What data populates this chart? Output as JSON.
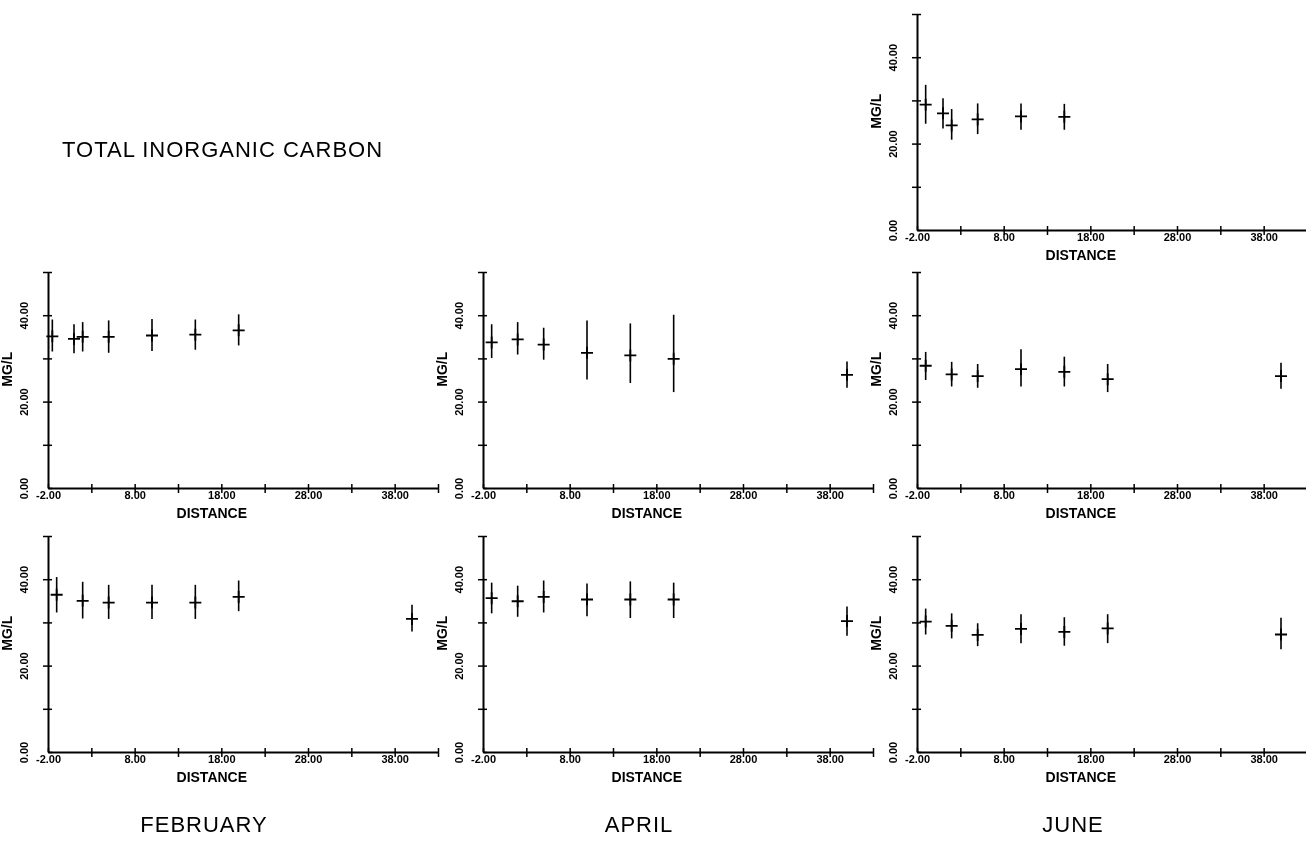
{
  "chart_data": [
    {
      "type": "scatter",
      "xlabel": "DISTANCE",
      "ylabel": "MG/L",
      "marker": "cross",
      "color": "#000000",
      "xlim": [
        -2,
        43
      ],
      "ylim": [
        0,
        50
      ],
      "xticks": [
        {
          "value": -2,
          "label": "-2.00"
        },
        {
          "value": 3,
          "label": null
        },
        {
          "value": 8,
          "label": "8.00"
        },
        {
          "value": 13,
          "label": null
        },
        {
          "value": 18,
          "label": "18.00"
        },
        {
          "value": 23,
          "label": null
        },
        {
          "value": 28,
          "label": "28.00"
        },
        {
          "value": 33,
          "label": null
        },
        {
          "value": 38,
          "label": "38.00"
        },
        {
          "value": 43,
          "label": null
        }
      ],
      "yticks": [
        {
          "value": 0,
          "label": "0.00"
        },
        {
          "value": 10,
          "label": null
        },
        {
          "value": 20,
          "label": "20.00"
        },
        {
          "value": 30,
          "label": null
        },
        {
          "value": 40,
          "label": "40.00"
        },
        {
          "value": 50,
          "label": null
        }
      ],
      "x": [
        -1,
        1,
        2,
        5,
        10,
        15
      ],
      "values": [
        29.0,
        27.0,
        24.2,
        25.6,
        26.3,
        26.2
      ],
      "errors": [
        [
          24.6,
          33.6
        ],
        [
          23.5,
          30.5
        ],
        [
          20.9,
          28.0
        ],
        [
          22.2,
          29.3
        ],
        [
          23.2,
          29.3
        ],
        [
          23.2,
          29.2
        ]
      ]
    },
    {
      "type": "scatter",
      "title": "TOTAL INORGANIC CARBON",
      "xlabel": "DISTANCE",
      "ylabel": "MG/L",
      "marker": "cross",
      "color": "#000000",
      "xlim": [
        -2,
        43
      ],
      "ylim": [
        0,
        50
      ],
      "xticks": [
        {
          "value": -2,
          "label": "-2.00"
        },
        {
          "value": 3,
          "label": null
        },
        {
          "value": 8,
          "label": "8.00"
        },
        {
          "value": 13,
          "label": null
        },
        {
          "value": 18,
          "label": "18.00"
        },
        {
          "value": 23,
          "label": null
        },
        {
          "value": 28,
          "label": "28.00"
        },
        {
          "value": 33,
          "label": null
        },
        {
          "value": 38,
          "label": "38.00"
        },
        {
          "value": 43,
          "label": null
        }
      ],
      "yticks": [
        {
          "value": 0,
          "label": "0.00"
        },
        {
          "value": 10,
          "label": null
        },
        {
          "value": 20,
          "label": "20.00"
        },
        {
          "value": 30,
          "label": null
        },
        {
          "value": 40,
          "label": "40.00"
        },
        {
          "value": 50,
          "label": null
        }
      ],
      "x": [
        -1.5,
        1,
        2,
        5,
        10,
        15,
        20
      ],
      "values": [
        35.1,
        34.5,
        35.0,
        35.0,
        35.3,
        35.5,
        36.5
      ],
      "errors": [
        [
          31.6,
          39.0
        ],
        [
          31.2,
          37.9
        ],
        [
          31.6,
          38.4
        ],
        [
          31.3,
          38.8
        ],
        [
          31.7,
          39.1
        ],
        [
          32.0,
          39.0
        ],
        [
          33.0,
          40.2
        ]
      ]
    },
    {
      "type": "scatter",
      "xlabel": "DISTANCE",
      "ylabel": "MG/L",
      "marker": "cross",
      "color": "#000000",
      "xlim": [
        -2,
        43
      ],
      "ylim": [
        0,
        50
      ],
      "xticks": [
        {
          "value": -2,
          "label": "-2.00"
        },
        {
          "value": 3,
          "label": null
        },
        {
          "value": 8,
          "label": "8.00"
        },
        {
          "value": 13,
          "label": null
        },
        {
          "value": 18,
          "label": "18.00"
        },
        {
          "value": 23,
          "label": null
        },
        {
          "value": 28,
          "label": "28.00"
        },
        {
          "value": 33,
          "label": null
        },
        {
          "value": 38,
          "label": "38.00"
        },
        {
          "value": 43,
          "label": null
        }
      ],
      "yticks": [
        {
          "value": 0,
          "label": "0.00"
        },
        {
          "value": 10,
          "label": null
        },
        {
          "value": 20,
          "label": "20.00"
        },
        {
          "value": 30,
          "label": null
        },
        {
          "value": 40,
          "label": "40.00"
        },
        {
          "value": 50,
          "label": null
        }
      ],
      "x": [
        -1,
        2,
        5,
        10,
        15,
        20,
        40
      ],
      "values": [
        33.7,
        34.4,
        33.2,
        31.3,
        30.7,
        29.9,
        26.2
      ],
      "errors": [
        [
          30.1,
          37.9
        ],
        [
          30.9,
          38.4
        ],
        [
          29.7,
          37.1
        ],
        [
          25.1,
          38.8
        ],
        [
          24.3,
          38.1
        ],
        [
          22.2,
          40.1
        ],
        [
          23.2,
          29.3
        ]
      ]
    },
    {
      "type": "scatter",
      "xlabel": "DISTANCE",
      "ylabel": "MG/L",
      "marker": "cross",
      "color": "#000000",
      "xlim": [
        -2,
        43
      ],
      "ylim": [
        0,
        50
      ],
      "xticks": [
        {
          "value": -2,
          "label": "-2.00"
        },
        {
          "value": 3,
          "label": null
        },
        {
          "value": 8,
          "label": "8.00"
        },
        {
          "value": 13,
          "label": null
        },
        {
          "value": 18,
          "label": "18.00"
        },
        {
          "value": 23,
          "label": null
        },
        {
          "value": 28,
          "label": "28.00"
        },
        {
          "value": 33,
          "label": null
        },
        {
          "value": 38,
          "label": "38.00"
        },
        {
          "value": 43,
          "label": null
        }
      ],
      "yticks": [
        {
          "value": 0,
          "label": "0.00"
        },
        {
          "value": 10,
          "label": null
        },
        {
          "value": 20,
          "label": "20.00"
        },
        {
          "value": 30,
          "label": null
        },
        {
          "value": 40,
          "label": "40.00"
        },
        {
          "value": 50,
          "label": null
        }
      ],
      "x": [
        -1,
        2,
        5,
        10,
        15,
        20,
        40
      ],
      "values": [
        28.3,
        26.3,
        25.9,
        27.5,
        26.9,
        25.2,
        25.9
      ],
      "errors": [
        [
          25.0,
          31.5
        ],
        [
          23.5,
          29.2
        ],
        [
          23.2,
          28.7
        ],
        [
          23.5,
          32.1
        ],
        [
          23.5,
          30.4
        ],
        [
          22.2,
          28.7
        ],
        [
          23.0,
          29.0
        ]
      ]
    },
    {
      "type": "scatter",
      "xlabel": "DISTANCE",
      "ylabel": "MG/L",
      "annotations": [
        "FEBRUARY"
      ],
      "marker": "cross",
      "color": "#000000",
      "xlim": [
        -2,
        43
      ],
      "ylim": [
        0,
        50
      ],
      "xticks": [
        {
          "value": -2,
          "label": "-2.00"
        },
        {
          "value": 3,
          "label": null
        },
        {
          "value": 8,
          "label": "8.00"
        },
        {
          "value": 13,
          "label": null
        },
        {
          "value": 18,
          "label": "18.00"
        },
        {
          "value": 23,
          "label": null
        },
        {
          "value": 28,
          "label": "28.00"
        },
        {
          "value": 33,
          "label": null
        },
        {
          "value": 38,
          "label": "38.00"
        },
        {
          "value": 43,
          "label": null
        }
      ],
      "yticks": [
        {
          "value": 0,
          "label": "0.00"
        },
        {
          "value": 10,
          "label": null
        },
        {
          "value": 20,
          "label": "20.00"
        },
        {
          "value": 30,
          "label": null
        },
        {
          "value": 40,
          "label": "40.00"
        },
        {
          "value": 50,
          "label": null
        }
      ],
      "x": [
        -1,
        2,
        5,
        10,
        15,
        20,
        40
      ],
      "values": [
        36.4,
        35.0,
        34.6,
        34.6,
        34.6,
        35.9,
        30.8
      ],
      "errors": [
        [
          32.3,
          40.5
        ],
        [
          30.9,
          39.4
        ],
        [
          30.8,
          38.7
        ],
        [
          30.8,
          38.7
        ],
        [
          30.8,
          38.7
        ],
        [
          32.6,
          39.7
        ],
        [
          27.9,
          34.1
        ]
      ]
    },
    {
      "type": "scatter",
      "xlabel": "DISTANCE",
      "ylabel": "MG/L",
      "annotations": [
        "APRIL"
      ],
      "marker": "cross",
      "color": "#000000",
      "xlim": [
        -2,
        43
      ],
      "ylim": [
        0,
        50
      ],
      "xticks": [
        {
          "value": -2,
          "label": "-2.00"
        },
        {
          "value": 3,
          "label": null
        },
        {
          "value": 8,
          "label": "8.00"
        },
        {
          "value": 13,
          "label": null
        },
        {
          "value": 18,
          "label": "18.00"
        },
        {
          "value": 23,
          "label": null
        },
        {
          "value": 28,
          "label": "28.00"
        },
        {
          "value": 33,
          "label": null
        },
        {
          "value": 38,
          "label": "38.00"
        },
        {
          "value": 43,
          "label": null
        }
      ],
      "yticks": [
        {
          "value": 0,
          "label": "0.00"
        },
        {
          "value": 10,
          "label": null
        },
        {
          "value": 20,
          "label": "20.00"
        },
        {
          "value": 30,
          "label": null
        },
        {
          "value": 40,
          "label": "40.00"
        },
        {
          "value": 50,
          "label": null
        }
      ],
      "x": [
        -1,
        2,
        5,
        10,
        15,
        20,
        40
      ],
      "values": [
        35.6,
        34.9,
        35.9,
        35.3,
        35.3,
        35.3,
        30.3
      ],
      "errors": [
        [
          32.1,
          39.2
        ],
        [
          31.3,
          38.5
        ],
        [
          32.3,
          39.7
        ],
        [
          31.4,
          39.0
        ],
        [
          31.0,
          39.5
        ],
        [
          31.0,
          39.2
        ],
        [
          26.9,
          33.7
        ]
      ]
    },
    {
      "type": "scatter",
      "xlabel": "DISTANCE",
      "ylabel": "MG/L",
      "annotations": [
        "JUNE"
      ],
      "marker": "cross",
      "color": "#000000",
      "xlim": [
        -2,
        43
      ],
      "ylim": [
        0,
        50
      ],
      "xticks": [
        {
          "value": -2,
          "label": "-2.00"
        },
        {
          "value": 3,
          "label": null
        },
        {
          "value": 8,
          "label": "8.00"
        },
        {
          "value": 13,
          "label": null
        },
        {
          "value": 18,
          "label": "18.00"
        },
        {
          "value": 23,
          "label": null
        },
        {
          "value": 28,
          "label": "28.00"
        },
        {
          "value": 33,
          "label": null
        },
        {
          "value": 38,
          "label": "38.00"
        },
        {
          "value": 43,
          "label": null
        }
      ],
      "yticks": [
        {
          "value": 0,
          "label": "0.00"
        },
        {
          "value": 10,
          "label": null
        },
        {
          "value": 20,
          "label": "20.00"
        },
        {
          "value": 30,
          "label": null
        },
        {
          "value": 40,
          "label": "40.00"
        },
        {
          "value": 50,
          "label": null
        }
      ],
      "x": [
        -1,
        2,
        5,
        10,
        15,
        20,
        40
      ],
      "values": [
        30.2,
        29.2,
        27.1,
        28.5,
        27.8,
        28.6,
        27.2
      ],
      "errors": [
        [
          27.2,
          33.2
        ],
        [
          26.3,
          32.1
        ],
        [
          24.5,
          29.8
        ],
        [
          25.2,
          31.9
        ],
        [
          24.6,
          31.2
        ],
        [
          25.2,
          31.9
        ],
        [
          23.8,
          31.1
        ]
      ]
    }
  ]
}
